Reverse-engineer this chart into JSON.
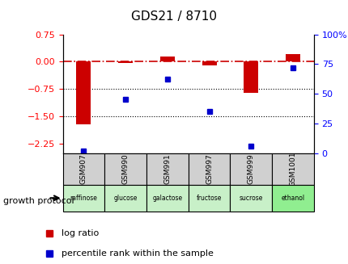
{
  "title": "GDS21 / 8710",
  "samples": [
    "GSM907",
    "GSM990",
    "GSM991",
    "GSM997",
    "GSM999",
    "GSM1001"
  ],
  "protocols": [
    "raffinose",
    "glucose",
    "galactose",
    "fructose",
    "sucrose",
    "ethanol"
  ],
  "log_ratio": [
    -1.72,
    -0.04,
    0.15,
    -0.1,
    -0.85,
    0.2
  ],
  "percentile_rank": [
    2,
    45,
    62,
    35,
    6,
    72
  ],
  "ylim_left": [
    -2.5,
    0.75
  ],
  "ylim_right": [
    0,
    100
  ],
  "left_yticks": [
    -2.25,
    -1.5,
    -0.75,
    0,
    0.75
  ],
  "right_yticks": [
    0,
    25,
    50,
    75,
    100
  ],
  "bar_color": "#CC0000",
  "dot_color": "#0000CC",
  "hline_color": "#CC0000",
  "hline_style": "-.",
  "grid_color": "#000000",
  "protocol_colors": [
    "#c8f0c8",
    "#c8f0c8",
    "#c8f0c8",
    "#c8f0c8",
    "#c8f0c8",
    "#90ee90"
  ],
  "sample_bg": "#d0d0d0",
  "legend_log_ratio": "log ratio",
  "legend_percentile": "percentile rank within the sample"
}
